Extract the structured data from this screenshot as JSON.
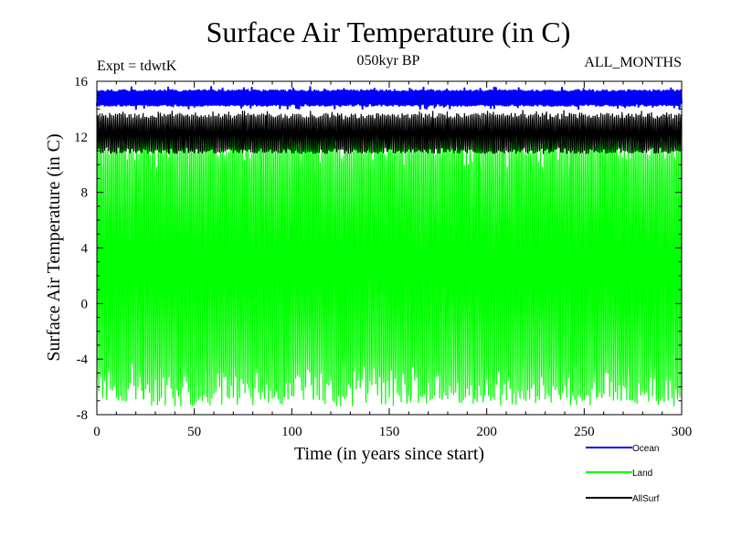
{
  "chart_data": {
    "type": "line",
    "title": "Surface Air Temperature (in C)",
    "subtitle": "050kyr BP",
    "experiment_label": "Expt = tdwtK",
    "months_label": "ALL_MONTHS",
    "xlabel": "Time (in years since start)",
    "ylabel": "Surface Air Temperature (in C)",
    "xlim": [
      0,
      300
    ],
    "ylim": [
      -8,
      16
    ],
    "x_ticks": [
      0,
      50,
      100,
      150,
      200,
      250,
      300
    ],
    "y_ticks": [
      -8,
      -4,
      0,
      4,
      8,
      12,
      16
    ],
    "x_tick_labels": [
      "0",
      "50",
      "100",
      "150",
      "200",
      "250",
      "300"
    ],
    "y_tick_labels": [
      "-8",
      "-4",
      "0",
      "4",
      "8",
      "12",
      "16"
    ],
    "legend_position": "bottom-right, outside plot",
    "series": [
      {
        "name": "Ocean",
        "color": "#0000ff",
        "monthly_range": [
          14.3,
          15.3
        ],
        "peak_max": 15.6,
        "trough_min": 14.0,
        "x_range": [
          0,
          300
        ]
      },
      {
        "name": "Land",
        "color": "#00ff00",
        "monthly_range": [
          -6.0,
          11.5
        ],
        "peak_max": 12.0,
        "trough_min": -7.0,
        "x_range": [
          0,
          300
        ]
      },
      {
        "name": "AllSurf",
        "color": "#000000",
        "monthly_range": [
          11.0,
          13.5
        ],
        "peak_max": 13.9,
        "trough_min": 10.8,
        "x_range": [
          0,
          300
        ]
      }
    ]
  }
}
